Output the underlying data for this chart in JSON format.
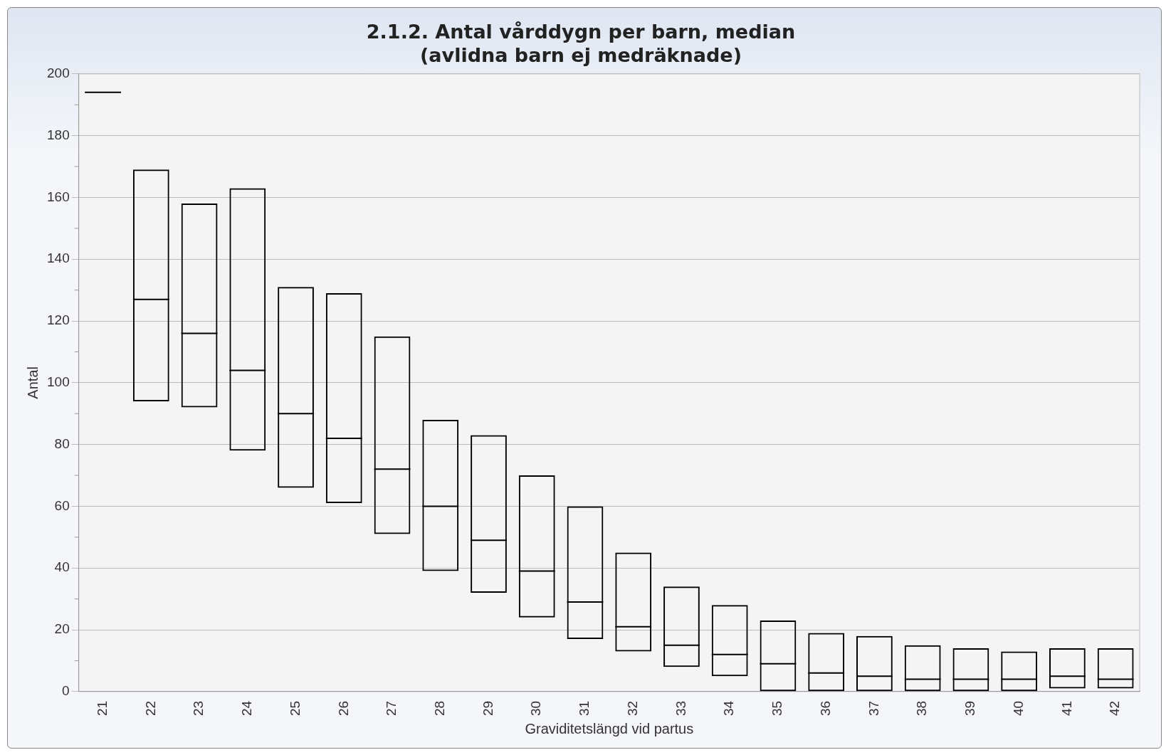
{
  "chart_data": {
    "type": "box",
    "title": "2.1.2. Antal vårddygn per barn, median\n(avlidna barn ej medräknade)",
    "xlabel": "Graviditetslängd vid partus",
    "ylabel": "Antal",
    "categories": [
      "21",
      "22",
      "23",
      "24",
      "25",
      "26",
      "27",
      "28",
      "29",
      "30",
      "31",
      "32",
      "33",
      "34",
      "35",
      "36",
      "37",
      "38",
      "39",
      "40",
      "41",
      "42"
    ],
    "boxes": [
      {
        "low": 194,
        "q1": 194,
        "median": 194,
        "q3": 194,
        "high": 194
      },
      {
        "low": 94,
        "q1": 94,
        "median": 127,
        "q3": 169,
        "high": 169
      },
      {
        "low": 92,
        "q1": 92,
        "median": 116,
        "q3": 158,
        "high": 158
      },
      {
        "low": 78,
        "q1": 78,
        "median": 104,
        "q3": 163,
        "high": 163
      },
      {
        "low": 66,
        "q1": 66,
        "median": 90,
        "q3": 131,
        "high": 131
      },
      {
        "low": 61,
        "q1": 61,
        "median": 82,
        "q3": 129,
        "high": 129
      },
      {
        "low": 51,
        "q1": 51,
        "median": 72,
        "q3": 115,
        "high": 115
      },
      {
        "low": 39,
        "q1": 39,
        "median": 60,
        "q3": 88,
        "high": 88
      },
      {
        "low": 32,
        "q1": 32,
        "median": 49,
        "q3": 83,
        "high": 83
      },
      {
        "low": 24,
        "q1": 24,
        "median": 39,
        "q3": 70,
        "high": 70
      },
      {
        "low": 17,
        "q1": 17,
        "median": 29,
        "q3": 60,
        "high": 60
      },
      {
        "low": 13,
        "q1": 13,
        "median": 21,
        "q3": 45,
        "high": 45
      },
      {
        "low": 8,
        "q1": 8,
        "median": 15,
        "q3": 34,
        "high": 34
      },
      {
        "low": 5,
        "q1": 5,
        "median": 12,
        "q3": 28,
        "high": 28
      },
      {
        "low": 0,
        "q1": 0,
        "median": 9,
        "q3": 23,
        "high": 23
      },
      {
        "low": 0,
        "q1": 0,
        "median": 6,
        "q3": 19,
        "high": 19
      },
      {
        "low": 0,
        "q1": 0,
        "median": 5,
        "q3": 18,
        "high": 18
      },
      {
        "low": 0,
        "q1": 0,
        "median": 4,
        "q3": 15,
        "high": 15
      },
      {
        "low": 0,
        "q1": 0,
        "median": 4,
        "q3": 14,
        "high": 14
      },
      {
        "low": 0,
        "q1": 0,
        "median": 4,
        "q3": 13,
        "high": 13
      },
      {
        "low": 1,
        "q1": 1,
        "median": 5,
        "q3": 14,
        "high": 14
      },
      {
        "low": 1,
        "q1": 1,
        "median": 4,
        "q3": 14,
        "high": 14
      }
    ],
    "color": "#000000",
    "ylim": [
      0,
      200
    ],
    "yticks": [
      0,
      20,
      40,
      60,
      80,
      100,
      120,
      140,
      160,
      180,
      200
    ],
    "grid": "y",
    "legend": false
  }
}
